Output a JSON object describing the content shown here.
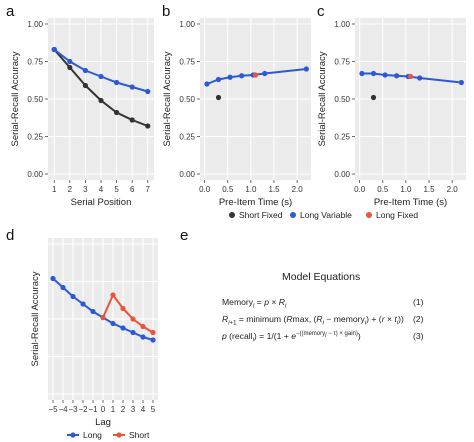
{
  "panels": [
    {
      "id": "a",
      "letter": "a",
      "chart_data": {
        "type": "line",
        "xlabel": "Serial Position",
        "ylabel": "Serial-Recall Accuracy",
        "xlim": [
          0.6,
          7.4
        ],
        "ylim": [
          -0.04,
          1.04
        ],
        "xticks": [
          1,
          2,
          3,
          4,
          5,
          6,
          7
        ],
        "yticks": [
          0.0,
          0.25,
          0.5,
          0.75,
          1.0
        ],
        "ytick_labels": [
          "0.00",
          "0.25",
          "0.50",
          "0.75",
          "1.00"
        ],
        "grid": true,
        "series": [
          {
            "name": "Short Fixed",
            "color": "#333333",
            "kind": "line",
            "x": [
              1,
              2,
              3,
              4,
              5,
              6,
              7
            ],
            "y": [
              0.83,
              0.71,
              0.59,
              0.49,
              0.41,
              0.36,
              0.32
            ]
          },
          {
            "name": "Long Variable",
            "color": "#2b5ad4",
            "kind": "line",
            "x": [
              1,
              2,
              3,
              4,
              5,
              6,
              7
            ],
            "y": [
              0.83,
              0.75,
              0.69,
              0.65,
              0.61,
              0.58,
              0.55
            ]
          }
        ]
      }
    },
    {
      "id": "b",
      "letter": "b",
      "chart_data": {
        "type": "scatter",
        "xlabel": "Pre-Item Time (s)",
        "ylabel": "Serial-Recall Accuracy",
        "xlim": [
          -0.1,
          2.3
        ],
        "ylim": [
          -0.04,
          1.04
        ],
        "xticks": [
          0.0,
          0.5,
          1.0,
          1.5,
          2.0
        ],
        "xtick_labels": [
          "0.0",
          "0.5",
          "1.0",
          "1.5",
          "2.0"
        ],
        "yticks": [
          0.0,
          0.25,
          0.5,
          0.75,
          1.0
        ],
        "ytick_labels": [
          "0.00",
          "0.25",
          "0.50",
          "0.75",
          "1.00"
        ],
        "grid": true,
        "series": [
          {
            "name": "Long Variable",
            "color": "#2b5ad4",
            "kind": "line",
            "x": [
              0.05,
              0.3,
              0.55,
              0.8,
              1.05,
              1.3,
              2.2
            ],
            "y": [
              0.6,
              0.63,
              0.645,
              0.655,
              0.66,
              0.67,
              0.7
            ]
          },
          {
            "name": "Short Fixed",
            "color": "#333333",
            "kind": "point",
            "x": [
              0.3
            ],
            "y": [
              0.51
            ]
          },
          {
            "name": "Long Fixed",
            "color": "#e8553a",
            "kind": "point",
            "x": [
              1.1
            ],
            "y": [
              0.66
            ]
          }
        ]
      }
    },
    {
      "id": "c",
      "letter": "c",
      "chart_data": {
        "type": "scatter",
        "xlabel": "Pre-Item Time (s)",
        "ylabel": "Serial-Recall Accuracy",
        "xlim": [
          -0.1,
          2.3
        ],
        "ylim": [
          -0.04,
          1.04
        ],
        "xticks": [
          0.0,
          0.5,
          1.0,
          1.5,
          2.0
        ],
        "xtick_labels": [
          "0.0",
          "0.5",
          "1.0",
          "1.5",
          "2.0"
        ],
        "yticks": [
          0.0,
          0.25,
          0.5,
          0.75,
          1.0
        ],
        "ytick_labels": [
          "0.00",
          "0.25",
          "0.50",
          "0.75",
          "1.00"
        ],
        "grid": true,
        "series": [
          {
            "name": "Long Variable",
            "color": "#2b5ad4",
            "kind": "line",
            "x": [
              0.05,
              0.3,
              0.55,
              0.8,
              1.05,
              1.3,
              2.2
            ],
            "y": [
              0.67,
              0.67,
              0.66,
              0.655,
              0.65,
              0.64,
              0.61
            ]
          },
          {
            "name": "Short Fixed",
            "color": "#333333",
            "kind": "point",
            "x": [
              0.3
            ],
            "y": [
              0.51
            ]
          },
          {
            "name": "Long Fixed",
            "color": "#e8553a",
            "kind": "point",
            "x": [
              1.1
            ],
            "y": [
              0.65
            ]
          }
        ]
      }
    },
    {
      "id": "d",
      "letter": "d",
      "chart_data": {
        "type": "line",
        "xlabel": "Lag",
        "ylabel": "Serial-Recall Accuracy",
        "xlim": [
          -5.5,
          5.5
        ],
        "ylim": [
          -0.04,
          1.04
        ],
        "xticks": [
          -5,
          -4,
          -3,
          -2,
          -1,
          0,
          1,
          2,
          3,
          4,
          5
        ],
        "xtick_labels": [
          "−5",
          "−4",
          "−3",
          "−2",
          "−1",
          "0",
          "1",
          "2",
          "3",
          "4",
          "5"
        ],
        "yticks": [],
        "grid": true,
        "series": [
          {
            "name": "Long",
            "color": "#2b5ad4",
            "kind": "line",
            "x": [
              -5,
              -4,
              -3,
              -2,
              -1,
              0,
              1,
              2,
              3,
              4,
              5
            ],
            "y": [
              0.77,
              0.71,
              0.65,
              0.6,
              0.55,
              0.51,
              0.47,
              0.44,
              0.41,
              0.38,
              0.36
            ]
          },
          {
            "name": "Short",
            "color": "#e8553a",
            "kind": "line",
            "x": [
              0,
              1,
              2,
              3,
              4,
              5
            ],
            "y": [
              0.51,
              0.66,
              0.57,
              0.5,
              0.45,
              0.41
            ]
          }
        ]
      }
    }
  ],
  "legend_top": [
    {
      "label": "Short Fixed",
      "color": "#333333"
    },
    {
      "label": "Long Variable",
      "color": "#2b5ad4"
    },
    {
      "label": "Long Fixed",
      "color": "#e8553a"
    }
  ],
  "legend_d": [
    {
      "label": "Long",
      "color": "#2b5ad4"
    },
    {
      "label": "Short",
      "color": "#e8553a"
    }
  ],
  "panel_e": {
    "letter": "e",
    "title": "Model Equations",
    "numbers": [
      "(1)",
      "(2)",
      "(3)"
    ]
  }
}
